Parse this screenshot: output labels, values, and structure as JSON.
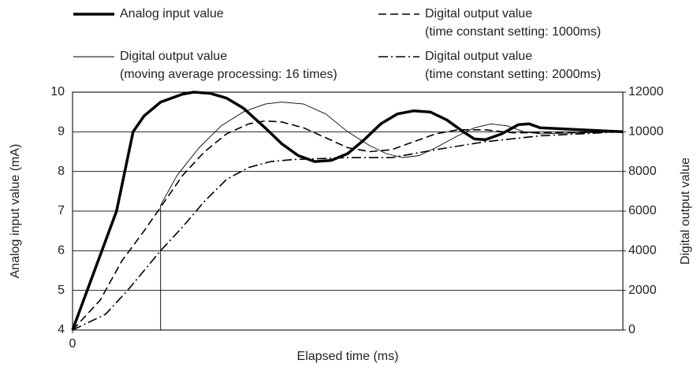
{
  "chart_data": {
    "type": "line",
    "xlabel": "Elapsed time (ms)",
    "ylabel": "Analog input value (mA)",
    "y2label": "Digital output value",
    "xlim": [
      0,
      100
    ],
    "xticks": [
      0
    ],
    "ylim": [
      4,
      10
    ],
    "yticks": [
      4,
      5,
      6,
      7,
      8,
      9,
      10
    ],
    "y2lim": [
      0,
      12000
    ],
    "y2ticks": [
      0,
      2000,
      4000,
      6000,
      8000,
      10000,
      12000
    ],
    "grid": true,
    "series": [
      {
        "name": "Analog input value",
        "color": "#000000",
        "line_style": "solid",
        "line_width": 3.5,
        "axis": "y",
        "x": [
          0,
          4,
          8,
          11,
          13,
          16,
          20,
          22,
          25,
          28,
          31,
          35,
          38,
          41,
          44,
          47,
          50,
          53,
          56,
          59,
          62,
          65,
          68,
          71,
          73,
          75,
          78,
          81,
          83,
          85,
          100
        ],
        "values": [
          4,
          5.5,
          7,
          9,
          9.4,
          9.75,
          9.95,
          10,
          9.97,
          9.85,
          9.6,
          9.1,
          8.7,
          8.4,
          8.25,
          8.28,
          8.45,
          8.8,
          9.2,
          9.45,
          9.53,
          9.5,
          9.3,
          9.0,
          8.82,
          8.8,
          8.95,
          9.18,
          9.2,
          9.1,
          9.0
        ]
      },
      {
        "name": "Digital output value (time constant setting: 1000ms)",
        "color": "#000000",
        "line_style": "dashed",
        "line_width": 1.6,
        "axis": "y2",
        "x": [
          0,
          5,
          9,
          13,
          16,
          20,
          24,
          28,
          32,
          35,
          38,
          42,
          46,
          50,
          54,
          58,
          62,
          66,
          70,
          75,
          80,
          100
        ],
        "values": [
          0,
          1500,
          3500,
          5000,
          6200,
          7800,
          9000,
          9900,
          10400,
          10550,
          10500,
          10200,
          9700,
          9200,
          9000,
          9100,
          9500,
          9900,
          10100,
          10100,
          9950,
          10000
        ]
      },
      {
        "name": "Digital output value (moving average processing: 16 times)",
        "color": "#000000",
        "line_style": "solid",
        "line_width": 0.9,
        "axis": "y2",
        "x": [
          16,
          16,
          19,
          23,
          27,
          31,
          35,
          38,
          42,
          46,
          50,
          54,
          57,
          60,
          63,
          66,
          70,
          73,
          76,
          79,
          82,
          85,
          100
        ],
        "values": [
          0,
          6300,
          7800,
          9200,
          10300,
          11000,
          11400,
          11500,
          11400,
          10900,
          10000,
          9300,
          8900,
          8700,
          8800,
          9200,
          9800,
          10200,
          10400,
          10300,
          10000,
          9900,
          10000
        ]
      },
      {
        "name": "Digital output value (time constant setting: 2000ms)",
        "color": "#000000",
        "line_style": "dashdot",
        "line_width": 1.6,
        "axis": "y2",
        "x": [
          0,
          6,
          10,
          16,
          20,
          24,
          28,
          32,
          36,
          40,
          50,
          58,
          66,
          75,
          85,
          100
        ],
        "values": [
          0,
          800,
          2000,
          4000,
          5200,
          6500,
          7600,
          8200,
          8500,
          8600,
          8700,
          8700,
          9100,
          9500,
          9800,
          10000
        ]
      }
    ]
  }
}
